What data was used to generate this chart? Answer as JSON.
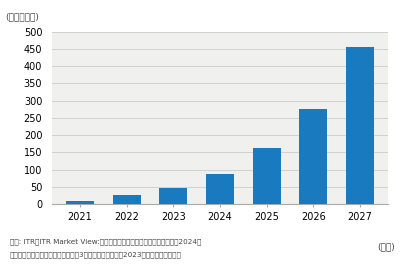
{
  "years": [
    "2021",
    "2022",
    "2023",
    "2024",
    "2025",
    "2026",
    "2027"
  ],
  "values": [
    10,
    25,
    48,
    88,
    163,
    275,
    456
  ],
  "bar_color": "#1a7abf",
  "background_color": "#ffffff",
  "plot_bg_color": "#f0f0ee",
  "ylim": [
    0,
    500
  ],
  "yticks": [
    0,
    50,
    100,
    150,
    200,
    250,
    300,
    350,
    400,
    450,
    500
  ],
  "unit_label": "(単位：億円)",
  "xlabel_nendo": "(年度)",
  "footnote_line1": "出典: ITR『ITR Market View:予算・経費・サブスクリプション管理带2024』",
  "footnote_line2": "＊ベンダーの売上金額を対象とし、3月期ベースで换算、2023年度以降は予測値。"
}
